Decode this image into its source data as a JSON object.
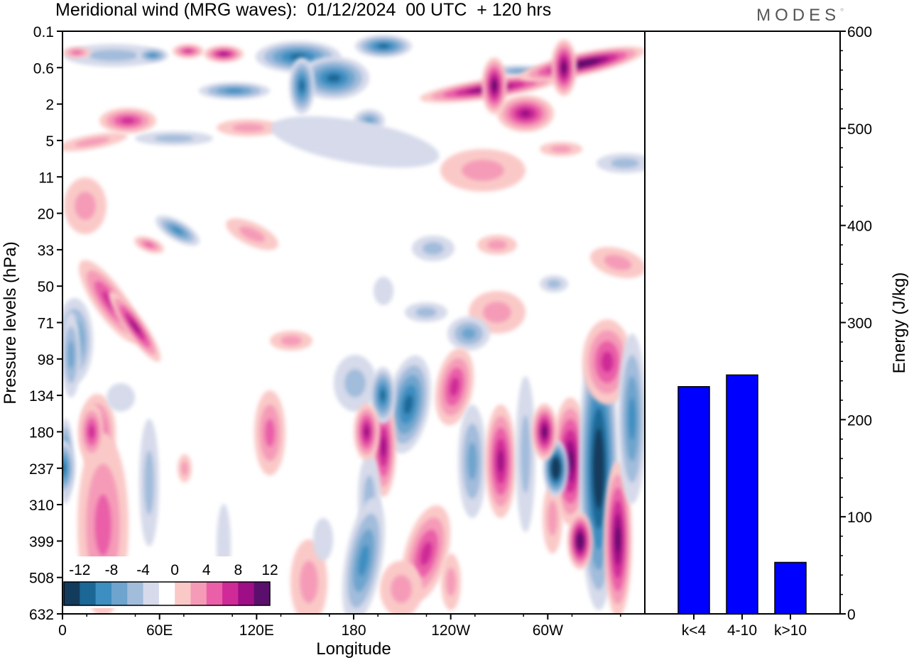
{
  "header": {
    "title": "Meridional wind (MRG waves):  01/12/2024  00 UTC  + 120 hrs",
    "brand": "MODES"
  },
  "colors": {
    "energy_bar": "#0000ff",
    "levels": [
      "#123b5c",
      "#1b6796",
      "#3d8ec1",
      "#6ea4cd",
      "#a2bcdb",
      "#d6daea",
      "#ffffff",
      "#fac9c7",
      "#f59bb8",
      "#ea5fa8",
      "#cf2a97",
      "#9e0e86",
      "#5a0f6c"
    ]
  },
  "chart_data": [
    {
      "type": "heatmap",
      "panel": "contour",
      "title": "Meridional wind (MRG waves):  01/12/2024  00 UTC  + 120 hrs",
      "xlabel": "Longitude",
      "ylabel": "Pressure levels (hPa)",
      "x_ticks": [
        "0",
        "60E",
        "120E",
        "180",
        "120W",
        "60W"
      ],
      "y_ticks": [
        "0.1",
        "0.6",
        "2",
        "5",
        "11",
        "20",
        "33",
        "50",
        "71",
        "98",
        "134",
        "180",
        "237",
        "310",
        "399",
        "508",
        "632"
      ],
      "colorbar_ticks": [
        "-12",
        "-8",
        "-4",
        "0",
        "4",
        "8",
        "12"
      ],
      "colorbar_levels": [
        -14,
        -12,
        -10,
        -8,
        -6,
        -4,
        -2,
        2,
        4,
        6,
        8,
        10,
        12,
        14
      ],
      "features": [
        {
          "lon": 305,
          "level": "237",
          "value": -15
        },
        {
          "lon": 320,
          "level": "399",
          "value": 14
        },
        {
          "lon": 298,
          "level": "180",
          "value": 12
        },
        {
          "lon": 198,
          "level": "134",
          "value": -10
        },
        {
          "lon": 188,
          "level": "180",
          "value": 9
        },
        {
          "lon": 0,
          "level": "237",
          "value": -9
        },
        {
          "lon": 18,
          "level": "180",
          "value": 7
        },
        {
          "lon": 310,
          "level": "0.6",
          "value": 12
        },
        {
          "lon": 267,
          "level": "1",
          "value": 11
        },
        {
          "lon": 148,
          "level": "1",
          "value": -9
        }
      ]
    },
    {
      "type": "bar",
      "panel": "energy",
      "categories": [
        "k<4",
        "4-10",
        "k>10"
      ],
      "values": [
        234,
        246,
        53
      ],
      "ylabel": "Energy (J/kg)",
      "ylim": [
        0,
        600
      ],
      "y_ticks": [
        "0",
        "100",
        "200",
        "300",
        "400",
        "500",
        "600"
      ]
    }
  ]
}
